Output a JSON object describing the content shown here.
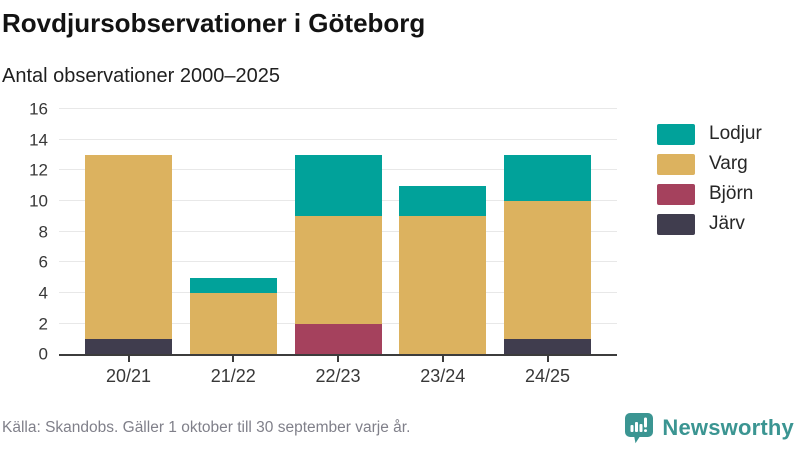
{
  "chart_data": {
    "type": "bar",
    "stacked": true,
    "title": "Rovdjursobservationer i Göteborg",
    "subtitle": "Antal observationer 2000–2025",
    "categories": [
      "20/21",
      "21/22",
      "22/23",
      "23/24",
      "24/25"
    ],
    "series": [
      {
        "name": "Järv",
        "color": "#403d4e",
        "values": [
          1,
          0,
          0,
          0,
          1
        ]
      },
      {
        "name": "Björn",
        "color": "#a5415d",
        "values": [
          0,
          0,
          2,
          0,
          0
        ]
      },
      {
        "name": "Varg",
        "color": "#dcb25f",
        "values": [
          12,
          4,
          7,
          9,
          9
        ]
      },
      {
        "name": "Lodjur",
        "color": "#01a29a",
        "values": [
          0,
          1,
          4,
          2,
          3
        ]
      }
    ],
    "legend": {
      "position": "right",
      "labels": [
        "Lodjur",
        "Varg",
        "Björn",
        "Järv"
      ]
    },
    "ylim": [
      0,
      16
    ],
    "yticks": [
      0,
      2,
      4,
      6,
      8,
      10,
      12,
      14,
      16
    ],
    "grid": true,
    "xlabel": "",
    "ylabel": ""
  },
  "footer": {
    "source": "Källa: Skandobs. Gäller 1 oktober till 30 september varje år.",
    "brand": "Newsworthy"
  },
  "colors": {
    "axis": "#3c3c3c",
    "gridline": "#e8e8e8",
    "brand_teal": "#3b9592"
  }
}
